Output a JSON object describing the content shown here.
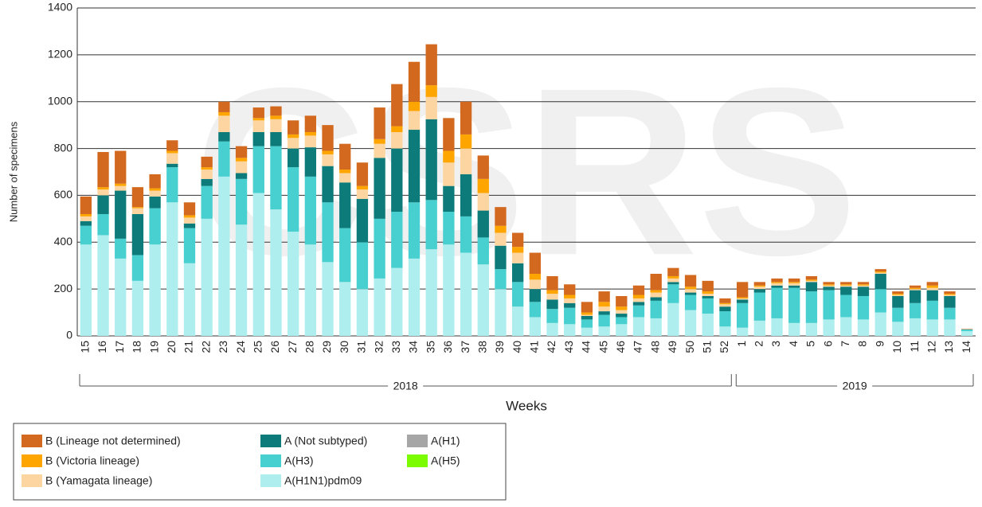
{
  "chart_data": {
    "type": "stacked-bar",
    "watermark": "CSRS",
    "y_label": "Number of specimens",
    "x_label": "Weeks",
    "category_groups": [
      {
        "name": "2018",
        "categories": [
          "15",
          "16",
          "17",
          "18",
          "19",
          "20",
          "21",
          "22",
          "23",
          "24",
          "25",
          "26",
          "27",
          "28",
          "29",
          "30",
          "31",
          "32",
          "33",
          "34",
          "35",
          "36",
          "37",
          "38",
          "39",
          "40",
          "41",
          "42",
          "43",
          "44",
          "45",
          "46",
          "47",
          "48",
          "49",
          "50",
          "51",
          "52"
        ]
      },
      {
        "name": "2019",
        "categories": [
          "1",
          "2",
          "3",
          "4",
          "5",
          "6",
          "7",
          "8",
          "9",
          "10",
          "11",
          "12",
          "13",
          "14"
        ]
      }
    ],
    "ylim": [
      0,
      1400
    ],
    "yticks": [
      0,
      200,
      400,
      600,
      800,
      1000,
      1200,
      1400
    ],
    "grid": true,
    "legend": "bottom-left",
    "series": [
      {
        "name": "B (Lineage not determined)",
        "color": "#d2691e",
        "values": [
          75,
          150,
          140,
          85,
          60,
          45,
          55,
          45,
          45,
          50,
          45,
          40,
          60,
          70,
          110,
          110,
          100,
          135,
          180,
          170,
          175,
          140,
          140,
          100,
          80,
          60,
          90,
          60,
          45,
          45,
          45,
          45,
          40,
          70,
          35,
          50,
          45,
          20,
          65,
          15,
          15,
          15,
          15,
          10,
          10,
          10,
          10,
          10,
          10,
          15,
          10,
          2
        ]
      },
      {
        "name": "B (Victoria lineage)",
        "color": "#ffa500",
        "values": [
          10,
          10,
          10,
          5,
          10,
          10,
          10,
          10,
          15,
          15,
          10,
          15,
          15,
          15,
          15,
          15,
          15,
          20,
          25,
          40,
          50,
          50,
          60,
          60,
          30,
          25,
          25,
          15,
          15,
          10,
          20,
          15,
          15,
          10,
          10,
          10,
          10,
          5,
          5,
          5,
          5,
          5,
          5,
          5,
          5,
          5,
          5,
          5,
          5,
          10,
          5,
          0
        ]
      },
      {
        "name": "B (Yamagata lineage)",
        "color": "#fdd5a0",
        "values": [
          20,
          25,
          20,
          25,
          25,
          45,
          25,
          40,
          70,
          50,
          50,
          55,
          45,
          50,
          50,
          40,
          40,
          60,
          70,
          80,
          95,
          100,
          110,
          75,
          55,
          45,
          40,
          25,
          20,
          5,
          20,
          15,
          15,
          20,
          15,
          15,
          10,
          10,
          5,
          10,
          10,
          10,
          5,
          5,
          5,
          5,
          5,
          5,
          5,
          10,
          5,
          0
        ]
      },
      {
        "name": "A (Not subtyped)",
        "color": "#0e7b7b",
        "values": [
          20,
          80,
          205,
          175,
          50,
          15,
          20,
          30,
          40,
          25,
          60,
          60,
          80,
          125,
          155,
          195,
          185,
          260,
          270,
          310,
          345,
          110,
          180,
          115,
          100,
          80,
          55,
          40,
          20,
          15,
          15,
          15,
          15,
          15,
          10,
          10,
          10,
          20,
          15,
          15,
          10,
          10,
          40,
          15,
          35,
          40,
          65,
          50,
          55,
          45,
          50,
          0
        ]
      },
      {
        "name": "A(H3)",
        "color": "#48cfcf",
        "values": [
          80,
          90,
          85,
          110,
          155,
          150,
          150,
          140,
          150,
          195,
          200,
          270,
          275,
          290,
          255,
          230,
          200,
          255,
          240,
          240,
          210,
          140,
          155,
          115,
          85,
          105,
          65,
          60,
          70,
          35,
          50,
          30,
          50,
          75,
          80,
          65,
          65,
          65,
          105,
          120,
          130,
          150,
          135,
          125,
          95,
          100,
          100,
          60,
          65,
          80,
          50,
          8
        ]
      },
      {
        "name": "A(H1N1)pdm09",
        "color": "#aeeeee",
        "values": [
          390,
          430,
          330,
          235,
          390,
          570,
          310,
          500,
          680,
          475,
          610,
          540,
          445,
          390,
          315,
          230,
          200,
          245,
          290,
          330,
          370,
          390,
          355,
          305,
          200,
          125,
          80,
          55,
          50,
          35,
          40,
          50,
          80,
          75,
          140,
          110,
          95,
          40,
          35,
          65,
          75,
          55,
          55,
          70,
          80,
          70,
          100,
          60,
          75,
          70,
          70,
          20
        ]
      },
      {
        "name": "A(H1)",
        "color": "#a6a6a6",
        "values": [
          0,
          0,
          0,
          0,
          0,
          0,
          0,
          0,
          0,
          0,
          0,
          0,
          0,
          0,
          0,
          0,
          0,
          0,
          0,
          0,
          0,
          0,
          0,
          0,
          0,
          0,
          0,
          0,
          0,
          0,
          0,
          0,
          0,
          0,
          0,
          0,
          0,
          0,
          0,
          0,
          0,
          0,
          0,
          0,
          0,
          0,
          0,
          0,
          0,
          0,
          0,
          0
        ]
      },
      {
        "name": "A(H5)",
        "color": "#7cfc00",
        "values": [
          0,
          0,
          0,
          0,
          0,
          0,
          0,
          0,
          0,
          0,
          0,
          0,
          0,
          0,
          0,
          0,
          0,
          0,
          0,
          0,
          0,
          0,
          0,
          0,
          0,
          0,
          0,
          0,
          0,
          0,
          0,
          0,
          0,
          0,
          0,
          0,
          0,
          0,
          0,
          0,
          0,
          0,
          0,
          0,
          0,
          0,
          0,
          0,
          0,
          0,
          0,
          0
        ]
      }
    ]
  }
}
